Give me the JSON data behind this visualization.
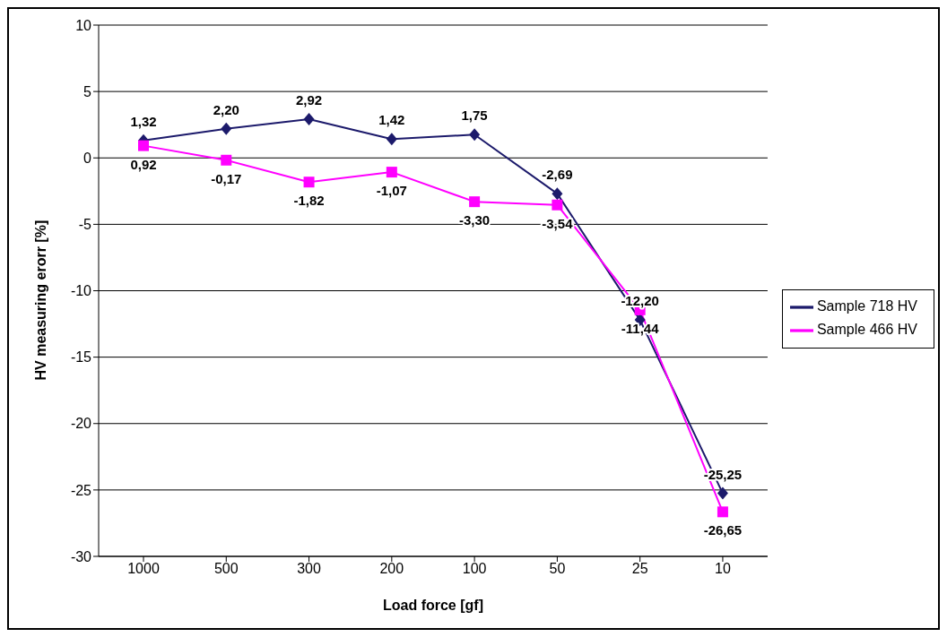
{
  "chart_data": {
    "type": "line",
    "xlabel": "Load force [gf]",
    "ylabel": "HV measuring erorr [%]",
    "categories": [
      "1000",
      "500",
      "300",
      "200",
      "100",
      "50",
      "25",
      "10"
    ],
    "series": [
      {
        "name": "Sample 718 HV",
        "color": "#1c1a6b",
        "marker": "diamond",
        "values": [
          1.32,
          2.2,
          2.92,
          1.42,
          1.75,
          -2.69,
          -12.2,
          -25.25
        ],
        "value_labels": [
          "1,32",
          "2,20",
          "2,92",
          "1,42",
          "1,75",
          "-2,69",
          "-12,20",
          "-25,25"
        ]
      },
      {
        "name": "Sample 466 HV",
        "color": "#ff00ff",
        "marker": "square",
        "values": [
          0.92,
          -0.17,
          -1.82,
          -1.07,
          -3.3,
          -3.54,
          -11.44,
          -26.65
        ],
        "value_labels": [
          "0,92",
          "-0,17",
          "-1,82",
          "-1,07",
          "-3,30",
          "-3,54",
          "-11,44",
          "-26,65"
        ]
      }
    ],
    "ylim": [
      -30,
      10
    ],
    "yticks": [
      -30,
      -25,
      -20,
      -15,
      -10,
      -5,
      0,
      5,
      10
    ],
    "grid": "y",
    "legend": "right",
    "line_style": "solid"
  }
}
